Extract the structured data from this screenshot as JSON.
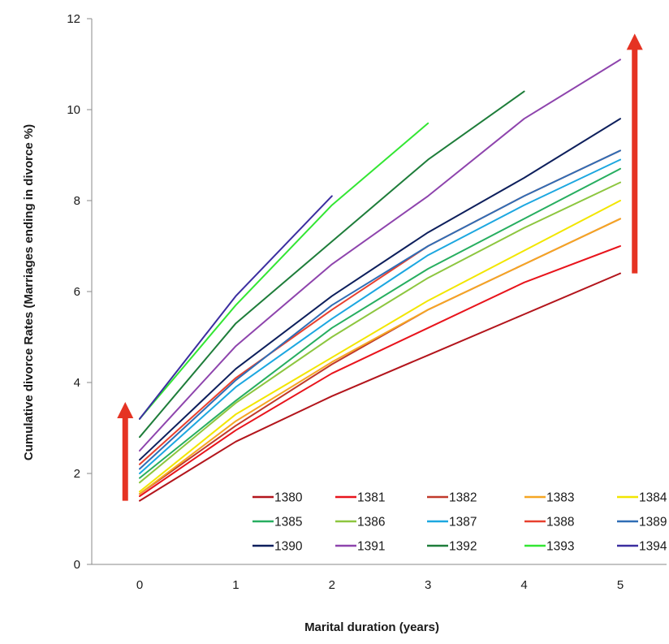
{
  "chart_data": {
    "type": "line",
    "title": "",
    "xlabel": "Marital duration (years)",
    "ylabel": "Cumulative divorce Rates (Marriages ending in divorce %)",
    "x": [
      0,
      1,
      2,
      3,
      4,
      5
    ],
    "x_tick_labels": [
      "0",
      "1",
      "2",
      "3",
      "4",
      "5"
    ],
    "ylim": [
      0,
      12
    ],
    "y_tick_labels": [
      "0",
      "2",
      "4",
      "6",
      "8",
      "10",
      "12"
    ],
    "grid": false,
    "legend_placement": "bottom-right",
    "series": [
      {
        "name": "1380",
        "color": "#b3151c",
        "values": [
          1.4,
          2.7,
          3.7,
          4.6,
          5.5,
          6.4
        ]
      },
      {
        "name": "1381",
        "color": "#e8141c",
        "values": [
          1.5,
          2.95,
          4.2,
          5.2,
          6.2,
          7.0
        ]
      },
      {
        "name": "1382",
        "color": "#c0392b",
        "values": [
          1.55,
          3.05,
          4.4,
          5.6,
          6.6,
          7.6
        ]
      },
      {
        "name": "1383",
        "color": "#f5a623",
        "values": [
          1.55,
          3.15,
          4.45,
          5.6,
          6.6,
          7.6
        ]
      },
      {
        "name": "1384",
        "color": "#f2e600",
        "values": [
          1.6,
          3.3,
          4.55,
          5.8,
          6.9,
          8.0
        ]
      },
      {
        "name": "1385",
        "color": "#27ae60",
        "values": [
          1.9,
          3.6,
          5.2,
          6.5,
          7.6,
          8.7
        ]
      },
      {
        "name": "1386",
        "color": "#8dc63f",
        "values": [
          1.8,
          3.55,
          5.0,
          6.3,
          7.4,
          8.4
        ]
      },
      {
        "name": "1387",
        "color": "#1ca7e0",
        "values": [
          2.0,
          3.9,
          5.4,
          6.8,
          7.9,
          8.9
        ]
      },
      {
        "name": "1388",
        "color": "#e8402e",
        "values": [
          2.2,
          4.1,
          5.6,
          7.0,
          8.1,
          9.1
        ]
      },
      {
        "name": "1389",
        "color": "#2f6db5",
        "values": [
          2.1,
          4.05,
          5.7,
          7.0,
          8.1,
          9.1
        ]
      },
      {
        "name": "1390",
        "color": "#0d1f5c",
        "values": [
          2.3,
          4.3,
          5.9,
          7.3,
          8.5,
          9.8
        ]
      },
      {
        "name": "1391",
        "color": "#8e44ad",
        "values": [
          2.5,
          4.8,
          6.6,
          8.1,
          9.8,
          11.1
        ]
      },
      {
        "name": "1392",
        "color": "#1e7d3a",
        "values": [
          2.8,
          5.3,
          7.1,
          8.9,
          10.4,
          null
        ]
      },
      {
        "name": "1393",
        "color": "#33e633",
        "values": [
          3.2,
          5.7,
          7.9,
          9.7,
          null,
          null
        ]
      },
      {
        "name": "1394",
        "color": "#3b2ea0",
        "values": [
          3.2,
          5.9,
          8.1,
          null,
          null,
          null
        ]
      }
    ],
    "annotations": [
      {
        "type": "arrow",
        "color": "#e53323",
        "direction": "up",
        "x_data": -0.15,
        "y_from": 1.4,
        "y_to": 3.5
      },
      {
        "type": "arrow",
        "color": "#e53323",
        "direction": "up",
        "x_data": 5.15,
        "y_from": 6.4,
        "y_to": 11.6
      }
    ]
  }
}
